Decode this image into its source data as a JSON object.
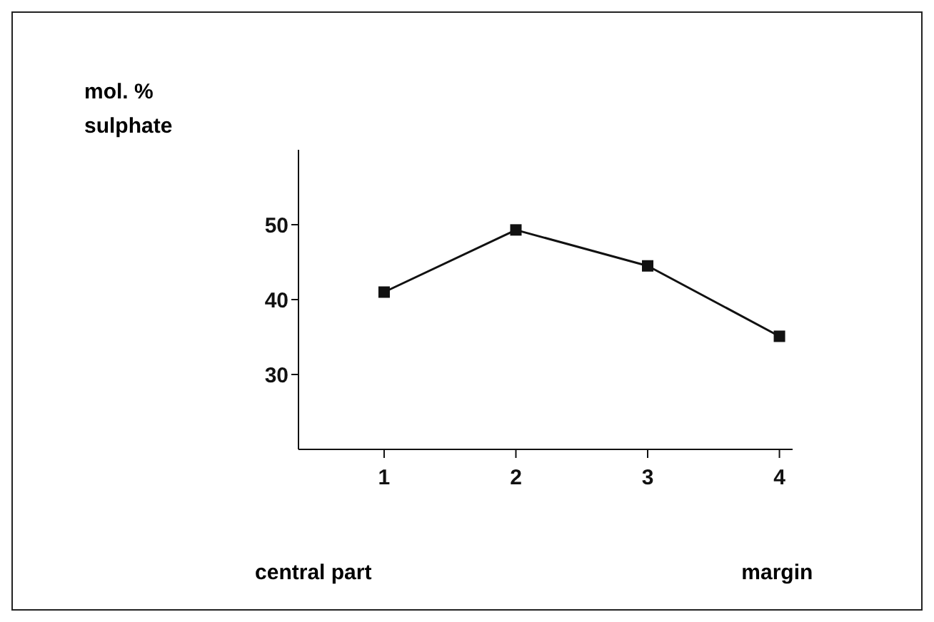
{
  "chart_data": {
    "type": "line",
    "ylabel": "mol. %\nsulphate",
    "x": [
      1,
      2,
      3,
      4
    ],
    "series": [
      {
        "color": "#111111",
        "values": [
          41.0,
          49.3,
          44.5,
          35.1
        ]
      }
    ],
    "xlim": [
      0.35,
      4.1
    ],
    "xticks": [
      1,
      2,
      3,
      4
    ],
    "ylim": [
      20,
      60
    ],
    "yticks": [
      30,
      40,
      50
    ],
    "marker": "square",
    "line_style": "solid",
    "grid": false,
    "legend": false,
    "annotations": [
      "central part",
      "margin"
    ]
  }
}
